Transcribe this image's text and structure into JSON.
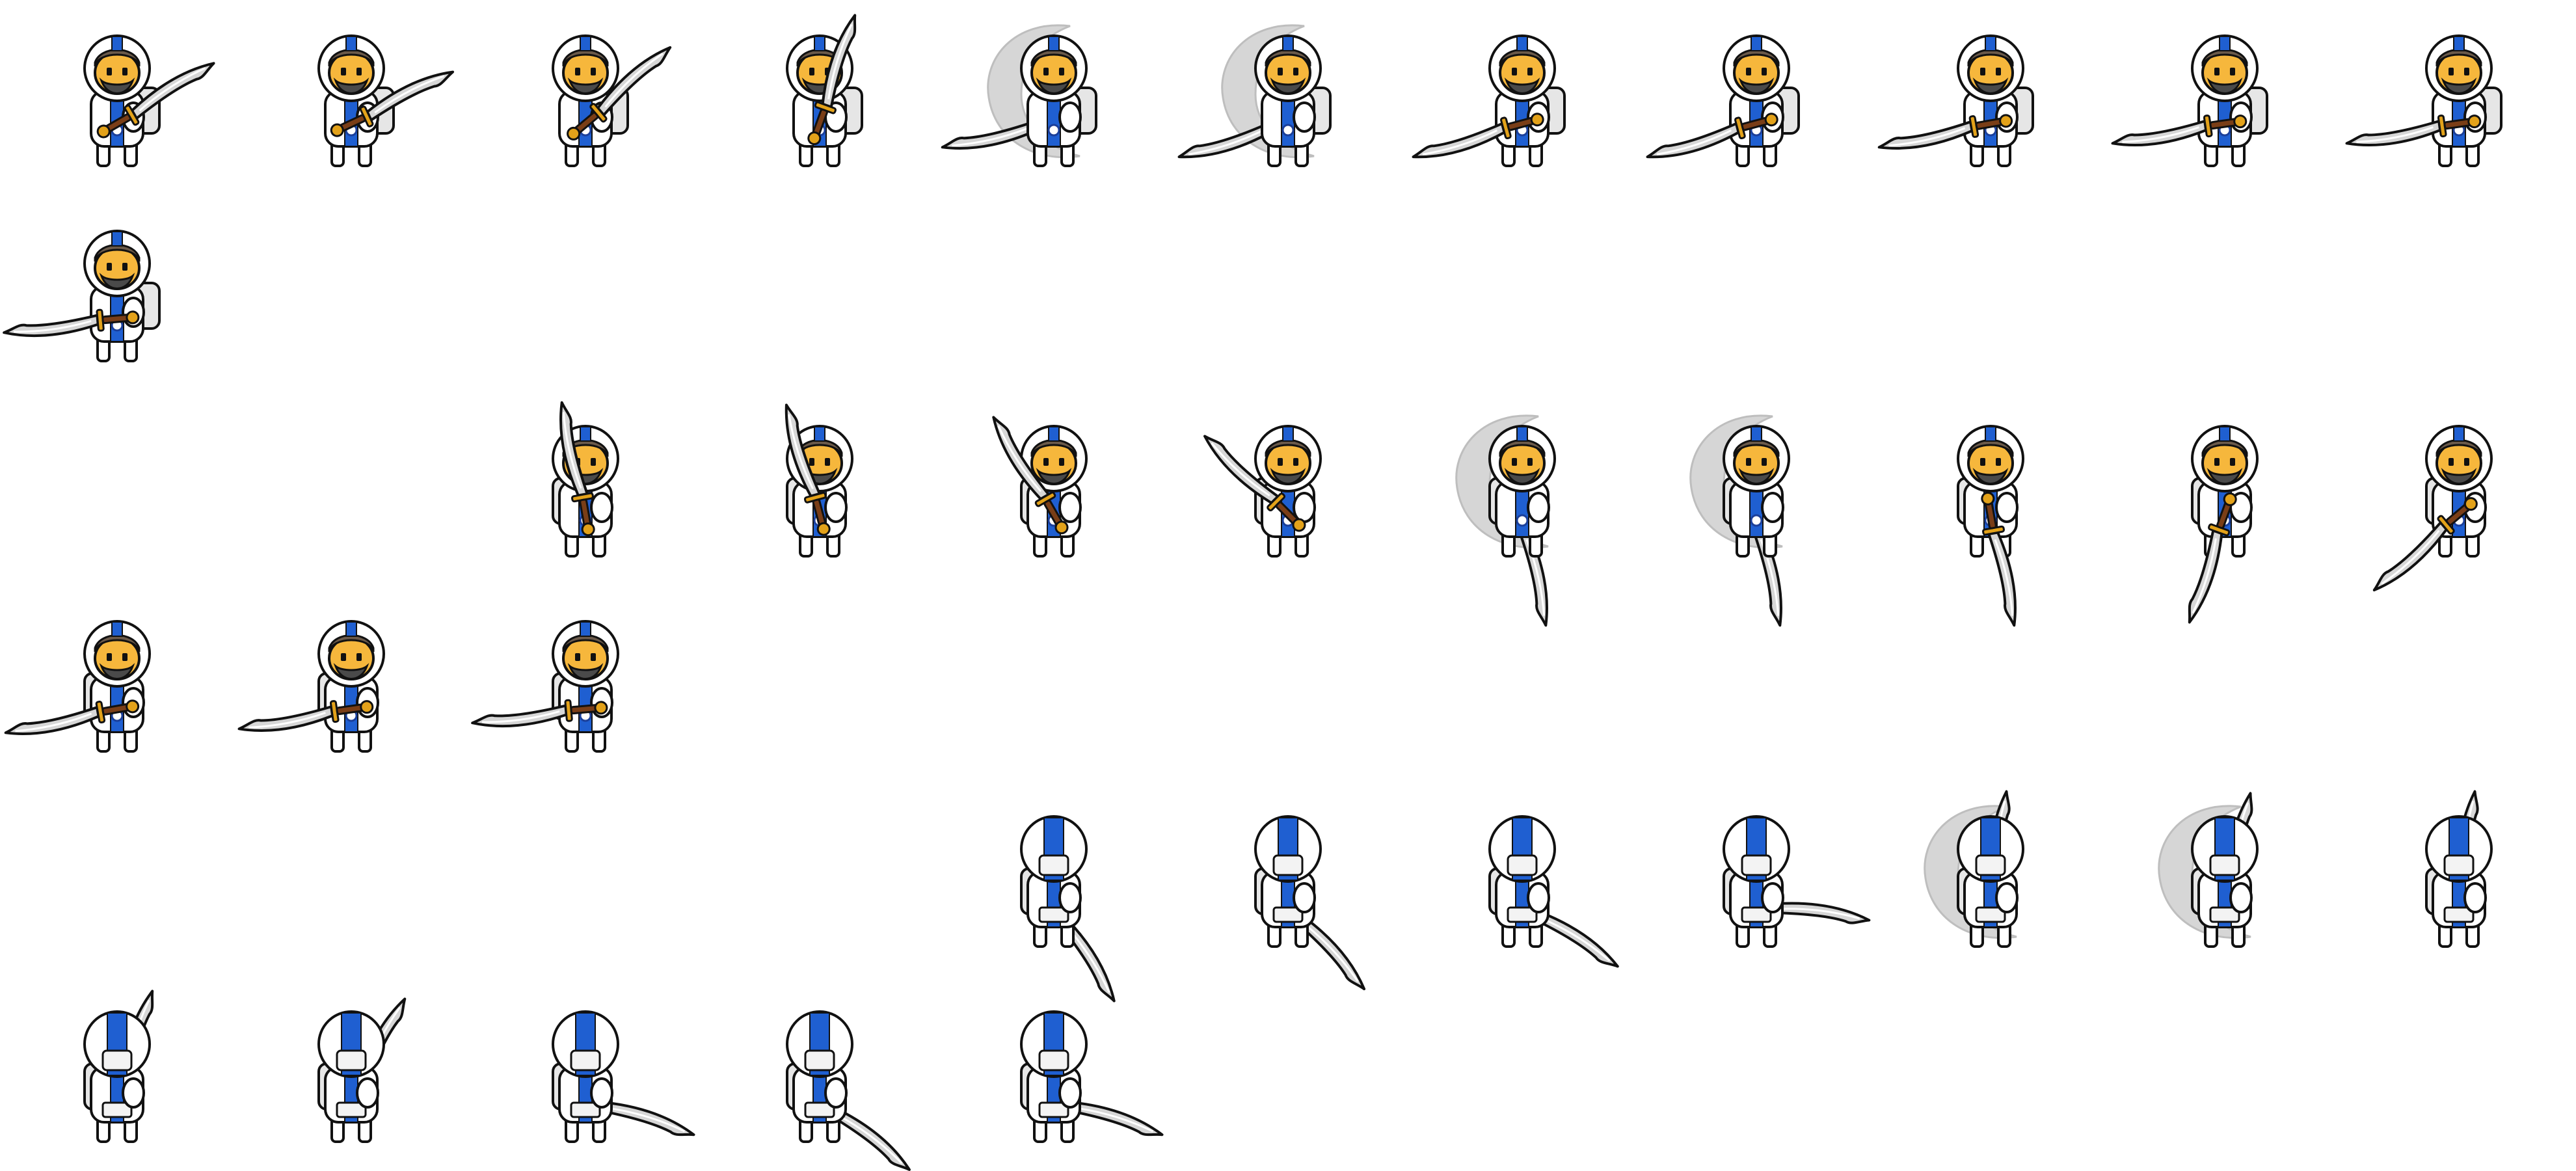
{
  "sprite_sheet": {
    "character": "astronaut-swordsman",
    "colors": {
      "suit": "#ffffff",
      "suit_shade": "#e6e6e6",
      "outline": "#111111",
      "stripe": "#1f5fd1",
      "stripe_dark": "#1b3f9a",
      "face": "#f6b73c",
      "hair": "#6b5a4a",
      "beard": "#4a4a4a",
      "blade": "#d7d7d7",
      "blade_dark": "#8f8f8f",
      "hilt": "#e3a21a",
      "hilt_dark": "#7a3e17",
      "swoosh": "#d2d2d2"
    },
    "rows": [
      {
        "animation": "slash-side",
        "view": "side",
        "frames": [
          {
            "pose": "windup",
            "sword_angle": -30,
            "swoosh": false
          },
          {
            "pose": "windup",
            "sword_angle": -25,
            "swoosh": false
          },
          {
            "pose": "windup",
            "sword_angle": -40,
            "swoosh": false
          },
          {
            "pose": "raise",
            "sword_angle": -70,
            "swoosh": false
          },
          {
            "pose": "strike",
            "sword_angle": 170,
            "swoosh": true
          },
          {
            "pose": "strike",
            "sword_angle": 165,
            "swoosh": true
          },
          {
            "pose": "follow",
            "sword_angle": 165,
            "swoosh": false
          },
          {
            "pose": "follow",
            "sword_angle": 165,
            "swoosh": false
          },
          {
            "pose": "follow",
            "sword_angle": 170,
            "swoosh": false
          },
          {
            "pose": "follow",
            "sword_angle": 172,
            "swoosh": false
          },
          {
            "pose": "follow",
            "sword_angle": 172,
            "swoosh": false
          }
        ]
      },
      {
        "animation": "slash-side-end",
        "view": "side",
        "frames": [
          {
            "pose": "rest",
            "sword_angle": 175,
            "swoosh": false
          }
        ]
      },
      {
        "animation": "slash-front",
        "view": "front",
        "frames": [
          {
            "slot": 2,
            "pose": "raise",
            "sword_angle": -100,
            "swoosh": false
          },
          {
            "slot": 3,
            "pose": "raise",
            "sword_angle": -105,
            "swoosh": false
          },
          {
            "slot": 4,
            "pose": "raise",
            "sword_angle": -120,
            "swoosh": false
          },
          {
            "slot": 5,
            "pose": "raise",
            "sword_angle": -135,
            "swoosh": false
          },
          {
            "slot": 6,
            "pose": "strike",
            "sword_angle": 80,
            "swoosh": true
          },
          {
            "slot": 7,
            "pose": "strike",
            "sword_angle": 80,
            "swoosh": true
          },
          {
            "slot": 8,
            "pose": "follow",
            "sword_angle": 80,
            "swoosh": false
          },
          {
            "slot": 9,
            "pose": "follow",
            "sword_angle": 110,
            "swoosh": false
          },
          {
            "slot": 10,
            "pose": "follow",
            "sword_angle": 140,
            "swoosh": false
          }
        ]
      },
      {
        "animation": "slash-front-end",
        "view": "front",
        "frames": [
          {
            "pose": "rest",
            "sword_angle": 170,
            "swoosh": false
          },
          {
            "pose": "rest",
            "sword_angle": 172,
            "swoosh": false
          },
          {
            "pose": "rest",
            "sword_angle": 175,
            "swoosh": false
          }
        ]
      },
      {
        "animation": "slash-back",
        "view": "back",
        "frames": [
          {
            "slot": 4,
            "pose": "low",
            "sword_angle": 60,
            "swoosh": false
          },
          {
            "slot": 5,
            "pose": "low",
            "sword_angle": 50,
            "swoosh": false
          },
          {
            "slot": 6,
            "pose": "low",
            "sword_angle": 35,
            "swoosh": false
          },
          {
            "slot": 7,
            "pose": "low",
            "sword_angle": 10,
            "swoosh": false
          },
          {
            "slot": 8,
            "pose": "strike",
            "sword_angle": -80,
            "swoosh": true
          },
          {
            "slot": 9,
            "pose": "strike",
            "sword_angle": -75,
            "swoosh": true
          },
          {
            "slot": 10,
            "pose": "follow",
            "sword_angle": -80,
            "swoosh": false
          }
        ]
      },
      {
        "animation": "slash-back-end",
        "view": "back",
        "frames": [
          {
            "pose": "rest",
            "sword_angle": -70,
            "swoosh": false
          },
          {
            "pose": "rest",
            "sword_angle": -60,
            "swoosh": false
          },
          {
            "pose": "rest",
            "sword_angle": 20,
            "swoosh": false
          },
          {
            "pose": "rest",
            "sword_angle": 40,
            "swoosh": false
          },
          {
            "pose": "rest",
            "sword_angle": 20,
            "swoosh": false
          }
        ]
      }
    ]
  }
}
